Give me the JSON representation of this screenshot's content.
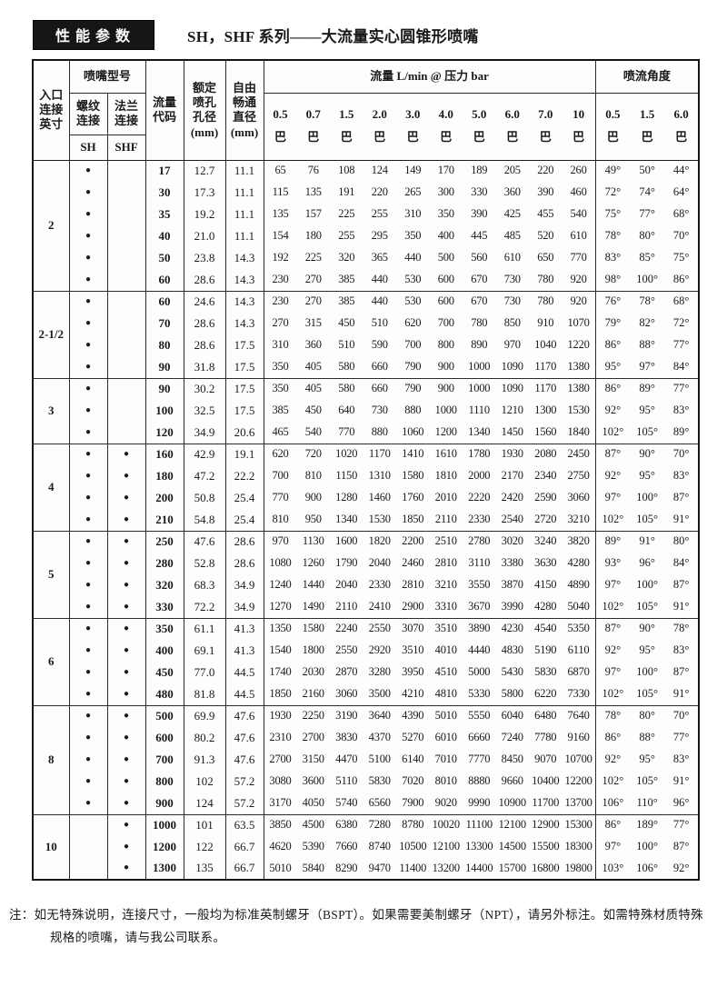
{
  "header": {
    "badge": "性能参数",
    "title": "SH，SHF 系列——大流量实心圆锥形喷嘴"
  },
  "table": {
    "labels": {
      "inlet": "入口\n连接\n英寸",
      "model": "喷嘴型号",
      "thread": "螺纹\n连接",
      "flange": "法兰\n连接",
      "sh": "SH",
      "shf": "SHF",
      "code": "流量\n代码",
      "orifice": "额定\n喷孔\n孔径\n(mm)",
      "free": "自由\n畅通\n直径\n(mm)",
      "flow": "流量  L/min @ 压力 bar",
      "angle": "喷流角度",
      "bar": "巴",
      "dot": "●"
    },
    "flow_pressures": [
      "0.5",
      "0.7",
      "1.5",
      "2.0",
      "3.0",
      "4.0",
      "5.0",
      "6.0",
      "7.0",
      "10"
    ],
    "angle_pressures": [
      "0.5",
      "1.5",
      "6.0"
    ],
    "groups": [
      {
        "inlet": "2",
        "sh": true,
        "shf": false,
        "rows": [
          {
            "code": "17",
            "orifice": "12.7",
            "free": "11.1",
            "flow": [
              "65",
              "76",
              "108",
              "124",
              "149",
              "170",
              "189",
              "205",
              "220",
              "260"
            ],
            "angles": [
              "49°",
              "50°",
              "44°"
            ]
          },
          {
            "code": "30",
            "orifice": "17.3",
            "free": "11.1",
            "flow": [
              "115",
              "135",
              "191",
              "220",
              "265",
              "300",
              "330",
              "360",
              "390",
              "460"
            ],
            "angles": [
              "72°",
              "74°",
              "64°"
            ]
          },
          {
            "code": "35",
            "orifice": "19.2",
            "free": "11.1",
            "flow": [
              "135",
              "157",
              "225",
              "255",
              "310",
              "350",
              "390",
              "425",
              "455",
              "540"
            ],
            "angles": [
              "75°",
              "77°",
              "68°"
            ]
          },
          {
            "code": "40",
            "orifice": "21.0",
            "free": "11.1",
            "flow": [
              "154",
              "180",
              "255",
              "295",
              "350",
              "400",
              "445",
              "485",
              "520",
              "610"
            ],
            "angles": [
              "78°",
              "80°",
              "70°"
            ]
          },
          {
            "code": "50",
            "orifice": "23.8",
            "free": "14.3",
            "flow": [
              "192",
              "225",
              "320",
              "365",
              "440",
              "500",
              "560",
              "610",
              "650",
              "770"
            ],
            "angles": [
              "83°",
              "85°",
              "75°"
            ]
          },
          {
            "code": "60",
            "orifice": "28.6",
            "free": "14.3",
            "flow": [
              "230",
              "270",
              "385",
              "440",
              "530",
              "600",
              "670",
              "730",
              "780",
              "920"
            ],
            "angles": [
              "98°",
              "100°",
              "86°"
            ]
          }
        ]
      },
      {
        "inlet": "2-1/2",
        "sh": true,
        "shf": false,
        "rows": [
          {
            "code": "60",
            "orifice": "24.6",
            "free": "14.3",
            "flow": [
              "230",
              "270",
              "385",
              "440",
              "530",
              "600",
              "670",
              "730",
              "780",
              "920"
            ],
            "angles": [
              "76°",
              "78°",
              "68°"
            ]
          },
          {
            "code": "70",
            "orifice": "28.6",
            "free": "14.3",
            "flow": [
              "270",
              "315",
              "450",
              "510",
              "620",
              "700",
              "780",
              "850",
              "910",
              "1070"
            ],
            "angles": [
              "79°",
              "82°",
              "72°"
            ]
          },
          {
            "code": "80",
            "orifice": "28.6",
            "free": "17.5",
            "flow": [
              "310",
              "360",
              "510",
              "590",
              "700",
              "800",
              "890",
              "970",
              "1040",
              "1220"
            ],
            "angles": [
              "86°",
              "88°",
              "77°"
            ]
          },
          {
            "code": "90",
            "orifice": "31.8",
            "free": "17.5",
            "flow": [
              "350",
              "405",
              "580",
              "660",
              "790",
              "900",
              "1000",
              "1090",
              "1170",
              "1380"
            ],
            "angles": [
              "95°",
              "97°",
              "84°"
            ]
          }
        ]
      },
      {
        "inlet": "3",
        "sh": true,
        "shf": false,
        "rows": [
          {
            "code": "90",
            "orifice": "30.2",
            "free": "17.5",
            "flow": [
              "350",
              "405",
              "580",
              "660",
              "790",
              "900",
              "1000",
              "1090",
              "1170",
              "1380"
            ],
            "angles": [
              "86°",
              "89°",
              "77°"
            ]
          },
          {
            "code": "100",
            "orifice": "32.5",
            "free": "17.5",
            "flow": [
              "385",
              "450",
              "640",
              "730",
              "880",
              "1000",
              "1110",
              "1210",
              "1300",
              "1530"
            ],
            "angles": [
              "92°",
              "95°",
              "83°"
            ]
          },
          {
            "code": "120",
            "orifice": "34.9",
            "free": "20.6",
            "flow": [
              "465",
              "540",
              "770",
              "880",
              "1060",
              "1200",
              "1340",
              "1450",
              "1560",
              "1840"
            ],
            "angles": [
              "102°",
              "105°",
              "89°"
            ]
          }
        ]
      },
      {
        "inlet": "4",
        "sh": true,
        "shf": true,
        "rows": [
          {
            "code": "160",
            "orifice": "42.9",
            "free": "19.1",
            "flow": [
              "620",
              "720",
              "1020",
              "1170",
              "1410",
              "1610",
              "1780",
              "1930",
              "2080",
              "2450"
            ],
            "angles": [
              "87°",
              "90°",
              "70°"
            ]
          },
          {
            "code": "180",
            "orifice": "47.2",
            "free": "22.2",
            "flow": [
              "700",
              "810",
              "1150",
              "1310",
              "1580",
              "1810",
              "2000",
              "2170",
              "2340",
              "2750"
            ],
            "angles": [
              "92°",
              "95°",
              "83°"
            ]
          },
          {
            "code": "200",
            "orifice": "50.8",
            "free": "25.4",
            "flow": [
              "770",
              "900",
              "1280",
              "1460",
              "1760",
              "2010",
              "2220",
              "2420",
              "2590",
              "3060"
            ],
            "angles": [
              "97°",
              "100°",
              "87°"
            ]
          },
          {
            "code": "210",
            "orifice": "54.8",
            "free": "25.4",
            "flow": [
              "810",
              "950",
              "1340",
              "1530",
              "1850",
              "2110",
              "2330",
              "2540",
              "2720",
              "3210"
            ],
            "angles": [
              "102°",
              "105°",
              "91°"
            ]
          }
        ]
      },
      {
        "inlet": "5",
        "sh": true,
        "shf": true,
        "rows": [
          {
            "code": "250",
            "orifice": "47.6",
            "free": "28.6",
            "flow": [
              "970",
              "1130",
              "1600",
              "1820",
              "2200",
              "2510",
              "2780",
              "3020",
              "3240",
              "3820"
            ],
            "angles": [
              "89°",
              "91°",
              "80°"
            ]
          },
          {
            "code": "280",
            "orifice": "52.8",
            "free": "28.6",
            "flow": [
              "1080",
              "1260",
              "1790",
              "2040",
              "2460",
              "2810",
              "3110",
              "3380",
              "3630",
              "4280"
            ],
            "angles": [
              "93°",
              "96°",
              "84°"
            ]
          },
          {
            "code": "320",
            "orifice": "68.3",
            "free": "34.9",
            "flow": [
              "1240",
              "1440",
              "2040",
              "2330",
              "2810",
              "3210",
              "3550",
              "3870",
              "4150",
              "4890"
            ],
            "angles": [
              "97°",
              "100°",
              "87°"
            ]
          },
          {
            "code": "330",
            "orifice": "72.2",
            "free": "34.9",
            "flow": [
              "1270",
              "1490",
              "2110",
              "2410",
              "2900",
              "3310",
              "3670",
              "3990",
              "4280",
              "5040"
            ],
            "angles": [
              "102°",
              "105°",
              "91°"
            ]
          }
        ]
      },
      {
        "inlet": "6",
        "sh": true,
        "shf": true,
        "rows": [
          {
            "code": "350",
            "orifice": "61.1",
            "free": "41.3",
            "flow": [
              "1350",
              "1580",
              "2240",
              "2550",
              "3070",
              "3510",
              "3890",
              "4230",
              "4540",
              "5350"
            ],
            "angles": [
              "87°",
              "90°",
              "78°"
            ]
          },
          {
            "code": "400",
            "orifice": "69.1",
            "free": "41.3",
            "flow": [
              "1540",
              "1800",
              "2550",
              "2920",
              "3510",
              "4010",
              "4440",
              "4830",
              "5190",
              "6110"
            ],
            "angles": [
              "92°",
              "95°",
              "83°"
            ]
          },
          {
            "code": "450",
            "orifice": "77.0",
            "free": "44.5",
            "flow": [
              "1740",
              "2030",
              "2870",
              "3280",
              "3950",
              "4510",
              "5000",
              "5430",
              "5830",
              "6870"
            ],
            "angles": [
              "97°",
              "100°",
              "87°"
            ]
          },
          {
            "code": "480",
            "orifice": "81.8",
            "free": "44.5",
            "flow": [
              "1850",
              "2160",
              "3060",
              "3500",
              "4210",
              "4810",
              "5330",
              "5800",
              "6220",
              "7330"
            ],
            "angles": [
              "102°",
              "105°",
              "91°"
            ]
          }
        ]
      },
      {
        "inlet": "8",
        "sh": true,
        "shf": true,
        "rows": [
          {
            "code": "500",
            "orifice": "69.9",
            "free": "47.6",
            "flow": [
              "1930",
              "2250",
              "3190",
              "3640",
              "4390",
              "5010",
              "5550",
              "6040",
              "6480",
              "7640"
            ],
            "angles": [
              "78°",
              "80°",
              "70°"
            ]
          },
          {
            "code": "600",
            "orifice": "80.2",
            "free": "47.6",
            "flow": [
              "2310",
              "2700",
              "3830",
              "4370",
              "5270",
              "6010",
              "6660",
              "7240",
              "7780",
              "9160"
            ],
            "angles": [
              "86°",
              "88°",
              "77°"
            ]
          },
          {
            "code": "700",
            "orifice": "91.3",
            "free": "47.6",
            "flow": [
              "2700",
              "3150",
              "4470",
              "5100",
              "6140",
              "7010",
              "7770",
              "8450",
              "9070",
              "10700"
            ],
            "angles": [
              "92°",
              "95°",
              "83°"
            ]
          },
          {
            "code": "800",
            "orifice": "102",
            "free": "57.2",
            "flow": [
              "3080",
              "3600",
              "5110",
              "5830",
              "7020",
              "8010",
              "8880",
              "9660",
              "10400",
              "12200"
            ],
            "angles": [
              "102°",
              "105°",
              "91°"
            ]
          },
          {
            "code": "900",
            "orifice": "124",
            "free": "57.2",
            "flow": [
              "3170",
              "4050",
              "5740",
              "6560",
              "7900",
              "9020",
              "9990",
              "10900",
              "11700",
              "13700"
            ],
            "angles": [
              "106°",
              "110°",
              "96°"
            ]
          }
        ]
      },
      {
        "inlet": "10",
        "sh": false,
        "shf": true,
        "rows": [
          {
            "code": "1000",
            "orifice": "101",
            "free": "63.5",
            "flow": [
              "3850",
              "4500",
              "6380",
              "7280",
              "8780",
              "10020",
              "11100",
              "12100",
              "12900",
              "15300"
            ],
            "angles": [
              "86°",
              "189°",
              "77°"
            ]
          },
          {
            "code": "1200",
            "orifice": "122",
            "free": "66.7",
            "flow": [
              "4620",
              "5390",
              "7660",
              "8740",
              "10500",
              "12100",
              "13300",
              "14500",
              "15500",
              "18300"
            ],
            "angles": [
              "97°",
              "100°",
              "87°"
            ]
          },
          {
            "code": "1300",
            "orifice": "135",
            "free": "66.7",
            "flow": [
              "5010",
              "5840",
              "8290",
              "9470",
              "11400",
              "13200",
              "14400",
              "15700",
              "16800",
              "19800"
            ],
            "angles": [
              "103°",
              "106°",
              "92°"
            ]
          }
        ]
      }
    ]
  },
  "note": "注：如无特殊说明，连接尺寸，一般均为标准英制螺牙（BSPT）。如果需要美制螺牙（NPT），请另外标注。如需特殊材质特殊规格的喷嘴，请与我公司联系。"
}
